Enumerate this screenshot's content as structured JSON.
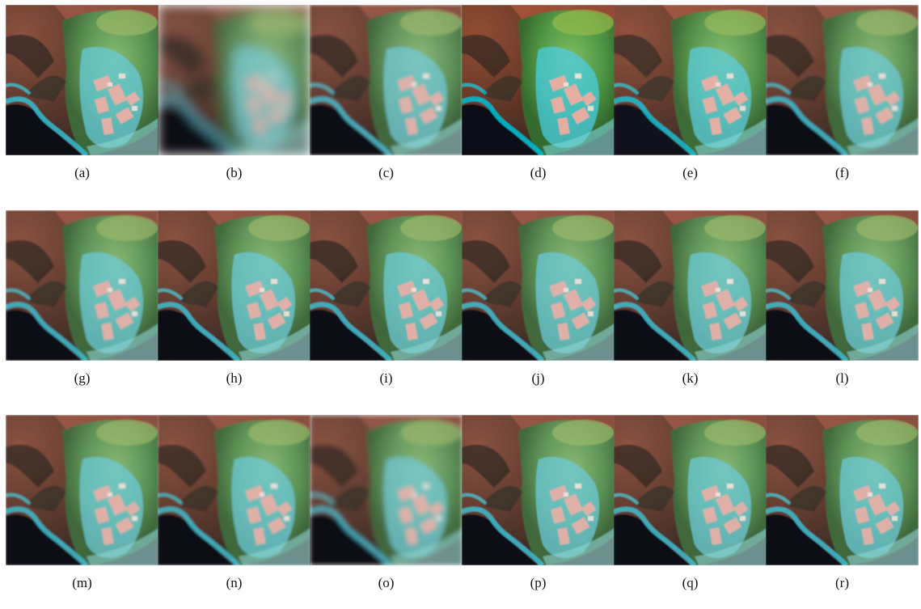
{
  "figure": {
    "panels": [
      {
        "label": "(a)",
        "blur": 0.6,
        "sat": 1.05,
        "bright": 1.0
      },
      {
        "label": "(b)",
        "blur": 7,
        "sat": 0.9,
        "bright": 1.0
      },
      {
        "label": "(c)",
        "blur": 1.6,
        "sat": 0.95,
        "bright": 1.0
      },
      {
        "label": "(d)",
        "blur": 0.6,
        "sat": 1.25,
        "bright": 1.08
      },
      {
        "label": "(e)",
        "blur": 0.7,
        "sat": 1.15,
        "bright": 0.98
      },
      {
        "label": "(f)",
        "blur": 1.4,
        "sat": 1.0,
        "bright": 1.0
      },
      {
        "label": "(g)",
        "blur": 1.0,
        "sat": 1.0,
        "bright": 1.0
      },
      {
        "label": "(h)",
        "blur": 0.9,
        "sat": 1.0,
        "bright": 1.0
      },
      {
        "label": "(i)",
        "blur": 0.9,
        "sat": 1.0,
        "bright": 1.0
      },
      {
        "label": "(j)",
        "blur": 0.8,
        "sat": 1.0,
        "bright": 1.0
      },
      {
        "label": "(k)",
        "blur": 0.9,
        "sat": 1.0,
        "bright": 1.0
      },
      {
        "label": "(l)",
        "blur": 0.9,
        "sat": 1.0,
        "bright": 1.0
      },
      {
        "label": "(m)",
        "blur": 1.1,
        "sat": 1.0,
        "bright": 1.0
      },
      {
        "label": "(n)",
        "blur": 1.3,
        "sat": 1.0,
        "bright": 1.0
      },
      {
        "label": "(o)",
        "blur": 2.8,
        "sat": 0.95,
        "bright": 1.0
      },
      {
        "label": "(p)",
        "blur": 0.8,
        "sat": 1.0,
        "bright": 1.0
      },
      {
        "label": "(q)",
        "blur": 0.8,
        "sat": 1.0,
        "bright": 1.0
      },
      {
        "label": "(r)",
        "blur": 0.8,
        "sat": 1.0,
        "bright": 1.0
      }
    ]
  }
}
